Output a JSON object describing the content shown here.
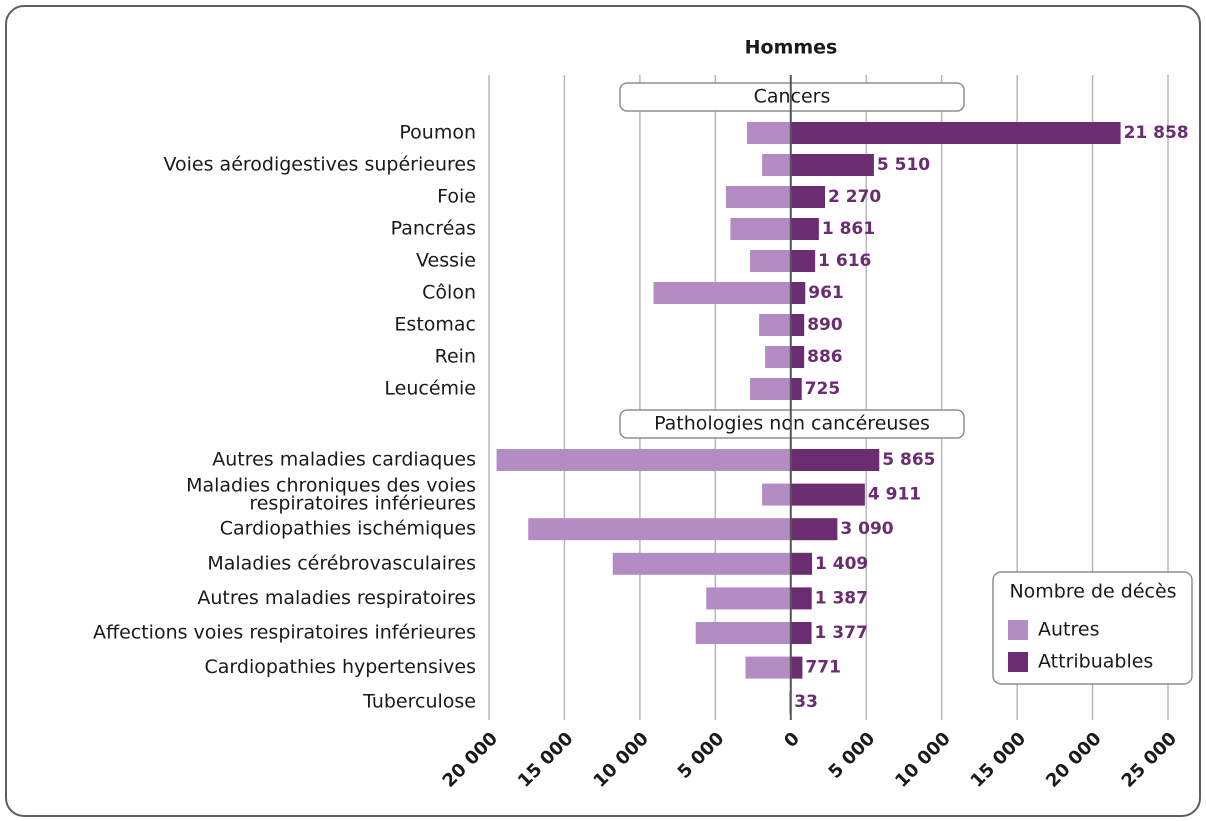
{
  "chart_data": {
    "type": "butterfly-bar",
    "title": "Hommes",
    "groups": [
      {
        "name": "Cancers",
        "categories": [
          "Poumon",
          "Voies aérodigestives supérieures",
          "Foie",
          "Pancréas",
          "Vessie",
          "Côlon",
          "Estomac",
          "Rein",
          "Leucémie"
        ]
      },
      {
        "name": "Pathologies non cancéreuses",
        "categories": [
          "Autres maladies cardiaques",
          "Maladies chroniques des voies respiratoires inférieures",
          "Cardiopathies ischémiques",
          "Maladies cérébrovasculaires",
          "Autres maladies respiratoires",
          "Affections voies respiratoires inférieures",
          "Cardiopathies hypertensives",
          "Tuberculose"
        ]
      }
    ],
    "series": [
      {
        "name": "Autres",
        "color": "#b48cc4",
        "values": [
          -2900,
          -1900,
          -4300,
          -4000,
          -2700,
          -9100,
          -2100,
          -1700,
          -2700,
          -19500,
          -1900,
          -17400,
          -11800,
          -5600,
          -6300,
          -3000,
          -100
        ]
      },
      {
        "name": "Attribuables",
        "color": "#6b2c72",
        "values": [
          21858,
          5510,
          2270,
          1861,
          1616,
          961,
          890,
          886,
          725,
          5865,
          4911,
          3090,
          1409,
          1387,
          1377,
          771,
          33
        ],
        "value_labels": [
          "21 858",
          "5 510",
          "2 270",
          "1 861",
          "1 616",
          "961",
          "890",
          "886",
          "725",
          "5 865",
          "4 911",
          "3 090",
          "1 409",
          "1 387",
          "1 377",
          "771",
          "33"
        ]
      }
    ],
    "xlim": [
      -20000,
      25000
    ],
    "xticks": [
      {
        "value": -20000,
        "label": "20 000"
      },
      {
        "value": -15000,
        "label": "15 000"
      },
      {
        "value": -10000,
        "label": "10 000"
      },
      {
        "value": -5000,
        "label": "5 000"
      },
      0,
      {
        "value": 5000,
        "label": "5 000"
      },
      {
        "value": 10000,
        "label": "10 000"
      },
      {
        "value": 15000,
        "label": "15 000"
      },
      {
        "value": 20000,
        "label": "20 000"
      },
      {
        "value": 25000,
        "label": "25 000"
      }
    ],
    "grid": true,
    "legend": {
      "title": "Nombre de décès",
      "position": "lower right"
    }
  }
}
